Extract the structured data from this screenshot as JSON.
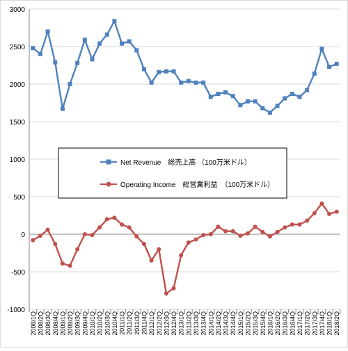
{
  "chart_data": {
    "type": "line",
    "x": [
      "2008/1Q",
      "2008/2Q",
      "2008/3Q",
      "2008/4Q",
      "2009/1Q",
      "2009/2Q",
      "2009/3Q",
      "2009/4Q",
      "2010/1Q",
      "2010/2Q",
      "2010/3Q",
      "2010/4Q",
      "2011/1Q",
      "2011/2Q",
      "2011/3Q",
      "2011/4Q",
      "2012/1Q",
      "2012/2Q",
      "2012/3Q",
      "2012/4Q",
      "2013/1Q",
      "2013/2Q",
      "2013/3Q",
      "2013/4Q",
      "2014/1Q",
      "2014/2Q",
      "2014/3Q",
      "2014/4Q",
      "2015/1Q",
      "2015/2Q",
      "2015/3Q",
      "2015/4Q",
      "2016/1Q",
      "2016/2Q",
      "2016/3Q",
      "2016/4Q",
      "2017/1Q",
      "2017/2Q",
      "2017/3Q",
      "2017/4Q",
      "2018/1Q",
      "2018/2Q"
    ],
    "x_tick_labels": [
      "2008/1Q",
      "2008/2Q",
      "2008/3Q",
      "2008/4Q",
      "2009/1Q",
      "2009/2Q",
      "2009/3Q",
      "2009/4Q",
      "2010/1Q",
      "2010/2Q",
      "2010/3Q",
      "2010/4Q",
      "2011/1Q",
      "2011/2Q",
      "2011/3Q",
      "2011/4Q",
      "2012/1Q",
      "2012/2Q",
      "2012/3Q",
      "2012/4Q",
      "2013/1Q",
      "2013/2Q",
      "2013/3Q",
      "2013/4Q",
      "2014/1Q",
      "2014/2Q",
      "2014/3Q",
      "2014/4Q",
      "2015/1Q",
      "2015/2Q",
      "2015/3Q",
      "2015/4Q",
      "2016/1Q",
      "2016/2Q",
      "2016/3Q",
      "2016/4Q",
      "2017/1Q",
      "2017/2Q",
      "2017/3Q",
      "2017/4Q",
      "2018/1Q",
      "2018/2Q"
    ],
    "series": [
      {
        "name": "Net Revenue　総売上高 （100万米ドル）",
        "color": "#4f81bd",
        "marker": "square",
        "values": [
          2480,
          2400,
          2700,
          2290,
          1670,
          2000,
          2280,
          2590,
          2330,
          2540,
          2660,
          2840,
          2540,
          2570,
          2450,
          2200,
          2020,
          2160,
          2170,
          2170,
          2020,
          2040,
          2020,
          2020,
          1830,
          1870,
          1890,
          1840,
          1720,
          1770,
          1770,
          1680,
          1620,
          1710,
          1810,
          1870,
          1830,
          1920,
          2140,
          2470,
          2230,
          2270
        ]
      },
      {
        "name": "Operating Income　総営業利益　（100万米ドル）",
        "color": "#c0504d",
        "marker": "circle",
        "values": [
          -80,
          -20,
          60,
          -130,
          -390,
          -420,
          -200,
          0,
          -10,
          90,
          200,
          220,
          130,
          90,
          -30,
          -130,
          -350,
          -200,
          -790,
          -720,
          -280,
          -110,
          -70,
          -10,
          0,
          100,
          40,
          40,
          -20,
          10,
          100,
          30,
          -30,
          30,
          90,
          130,
          130,
          180,
          280,
          410,
          270,
          300
        ]
      }
    ],
    "ylim": [
      -1000,
      3000
    ],
    "y_ticks": [
      -1000,
      -500,
      0,
      500,
      1000,
      1500,
      2000,
      2500,
      3000
    ],
    "y_tick_labels": [
      "-1000",
      "-500",
      "0",
      "500",
      "1000",
      "1500",
      "2000",
      "2500",
      "3000"
    ],
    "grid": "horizontal",
    "legend_position": "center-left",
    "title": "",
    "xlabel": "",
    "ylabel": ""
  }
}
